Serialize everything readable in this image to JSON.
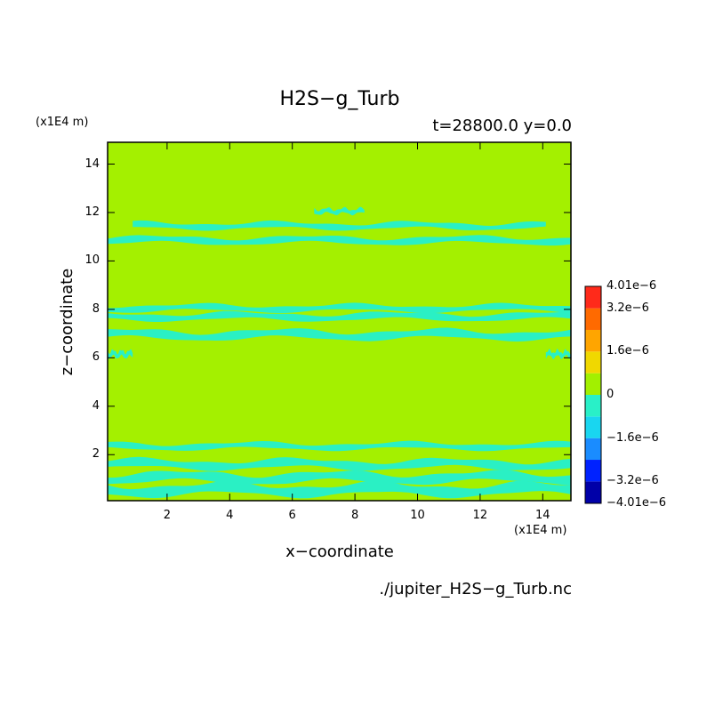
{
  "chart_data": {
    "type": "heatmap",
    "title": "H2S−g_Turb",
    "subtitle": "t=28800.0 y=0.0",
    "xlabel": "x−coordinate",
    "ylabel": "z−coordinate",
    "x_unit": "(x1E4 m)",
    "z_unit": "(x1E4 m)",
    "xlim": [
      0.1,
      14.9
    ],
    "ylim": [
      0.1,
      14.9
    ],
    "xticks": [
      2,
      4,
      6,
      8,
      10,
      12,
      14
    ],
    "yticks": [
      2,
      4,
      6,
      8,
      10,
      12,
      14
    ],
    "colorbar": {
      "min": -4.01e-06,
      "max": 4.01e-06,
      "labels": [
        "4.01e−6",
        "3.2e−6",
        "1.6e−6",
        "0",
        "−1.6e−6",
        "−3.2e−6",
        "−4.01e−6"
      ],
      "label_values": [
        4.01e-06,
        3.2e-06,
        1.6e-06,
        0,
        -1.6e-06,
        -3.2e-06,
        -4.01e-06
      ],
      "levels": [
        -4.01e-06,
        -3.2e-06,
        -2.4e-06,
        -1.6e-06,
        -8e-07,
        0,
        8e-07,
        1.6e-06,
        2.4e-06,
        3.2e-06,
        4.01e-06
      ],
      "colors": [
        "#0000a8",
        "#0022ff",
        "#1a8cff",
        "#19d6f0",
        "#29f0c8",
        "#a2f000",
        "#f0d800",
        "#ffa500",
        "#ff6a00",
        "#ff2a1a",
        "#ff4d4d"
      ]
    },
    "background_color": "#a4f000",
    "band_color": "#2af0c4",
    "background_level": 0,
    "band_level": -8e-07,
    "bands": [
      {
        "z": 0.55,
        "thickness": 0.38,
        "x0": 0.1,
        "x1": 14.9
      },
      {
        "z": 1.05,
        "thickness": 0.34,
        "x0": 0.1,
        "x1": 14.9
      },
      {
        "z": 1.6,
        "thickness": 0.3,
        "x0": 0.1,
        "x1": 14.9
      },
      {
        "z": 2.35,
        "thickness": 0.22,
        "x0": 0.1,
        "x1": 14.9
      },
      {
        "z": 6.15,
        "thickness": 0.22,
        "x0": 0.1,
        "x1": 0.9
      },
      {
        "z": 6.15,
        "thickness": 0.22,
        "x0": 14.1,
        "x1": 14.9
      },
      {
        "z": 6.95,
        "thickness": 0.3,
        "x0": 0.1,
        "x1": 14.9
      },
      {
        "z": 7.7,
        "thickness": 0.24,
        "x0": 0.1,
        "x1": 14.9
      },
      {
        "z": 8.05,
        "thickness": 0.22,
        "x0": 0.1,
        "x1": 14.9
      },
      {
        "z": 10.85,
        "thickness": 0.24,
        "x0": 0.1,
        "x1": 14.9
      },
      {
        "z": 11.45,
        "thickness": 0.22,
        "x0": 0.9,
        "x1": 14.1
      },
      {
        "z": 12.05,
        "thickness": 0.18,
        "x0": 6.7,
        "x1": 8.3
      }
    ],
    "source": "./jupiter_H2S−g_Turb.nc"
  }
}
